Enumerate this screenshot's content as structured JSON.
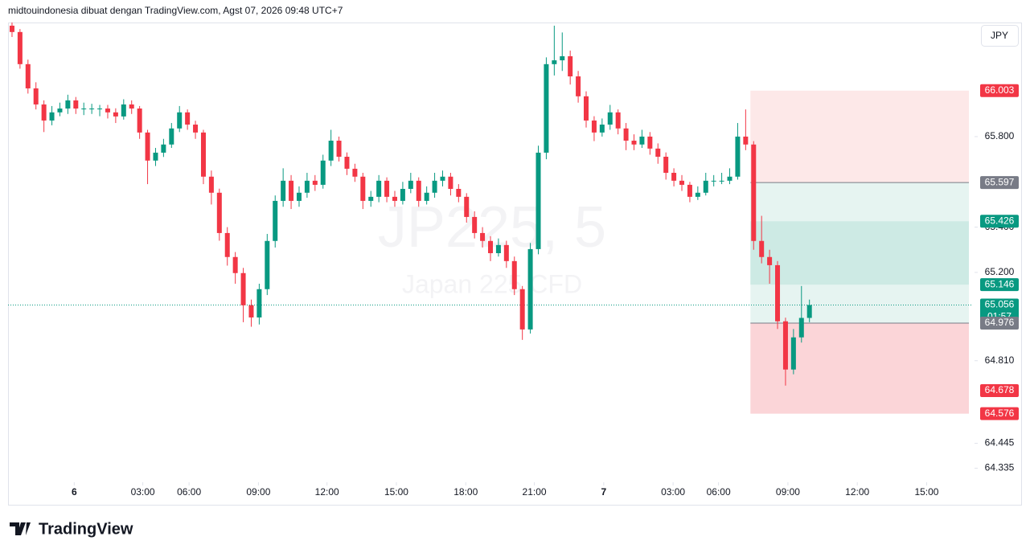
{
  "header": "midtouindonesia dibuat dengan TradingView.com, Agst 07, 2026 09:48 UTC+7",
  "currency": "JPY",
  "logo": "TradingView",
  "chart_data": {
    "type": "candlestick",
    "watermark": {
      "symbol": "JP225, 5",
      "description": "Japan 225 CFD"
    },
    "up_color": "#089981",
    "down_color": "#f23645",
    "xlim": [
      -0.5,
      120.5
    ],
    "ylim": [
      64.273,
      66.304
    ],
    "xticks": [
      {
        "value": 7.8,
        "label": "6"
      },
      {
        "value": 16.4,
        "label": "03:00"
      },
      {
        "value": 22.2,
        "label": "06:00"
      },
      {
        "value": 30.9,
        "label": "09:00"
      },
      {
        "value": 39.5,
        "label": "12:00"
      },
      {
        "value": 48.2,
        "label": "15:00"
      },
      {
        "value": 56.9,
        "label": "18:00"
      },
      {
        "value": 65.5,
        "label": "21:00"
      },
      {
        "value": 74.2,
        "label": "7"
      },
      {
        "value": 82.9,
        "label": "03:00"
      },
      {
        "value": 88.6,
        "label": "06:00"
      },
      {
        "value": 97.3,
        "label": "09:00"
      },
      {
        "value": 106.0,
        "label": "12:00"
      },
      {
        "value": 114.7,
        "label": "15:00"
      }
    ],
    "yticks": [
      {
        "value": 65.8,
        "label": "65.800"
      },
      {
        "value": 65.4,
        "label": "65.400"
      },
      {
        "value": 65.2,
        "label": "65.200"
      },
      {
        "value": 64.81,
        "label": "64.810"
      },
      {
        "value": 64.445,
        "label": "64.445"
      },
      {
        "value": 64.335,
        "label": "64.335"
      }
    ],
    "candles": [
      [
        66.29,
        66.304,
        66.24,
        66.262
      ],
      [
        66.262,
        66.275,
        66.1,
        66.12
      ],
      [
        66.12,
        66.14,
        65.99,
        66.013
      ],
      [
        66.013,
        66.04,
        65.92,
        65.942
      ],
      [
        65.942,
        65.96,
        65.82,
        65.871
      ],
      [
        65.871,
        65.935,
        65.85,
        65.907
      ],
      [
        65.907,
        65.95,
        65.89,
        65.924
      ],
      [
        65.924,
        65.985,
        65.9,
        65.96
      ],
      [
        65.96,
        65.975,
        65.9,
        65.924
      ],
      [
        65.924,
        65.95,
        65.895,
        65.924
      ],
      [
        65.924,
        65.945,
        65.9,
        65.924
      ],
      [
        65.924,
        65.94,
        65.89,
        65.924
      ],
      [
        65.924,
        65.94,
        65.88,
        65.907
      ],
      [
        65.907,
        65.925,
        65.86,
        65.889
      ],
      [
        65.889,
        65.965,
        65.875,
        65.942
      ],
      [
        65.942,
        65.96,
        65.9,
        65.924
      ],
      [
        65.924,
        65.935,
        65.79,
        65.818
      ],
      [
        65.818,
        65.83,
        65.59,
        65.694
      ],
      [
        65.694,
        65.75,
        65.67,
        65.729
      ],
      [
        65.729,
        65.79,
        65.71,
        65.765
      ],
      [
        65.765,
        65.86,
        65.75,
        65.836
      ],
      [
        65.836,
        65.935,
        65.82,
        65.907
      ],
      [
        65.907,
        65.92,
        65.83,
        65.853
      ],
      [
        65.853,
        65.87,
        65.79,
        65.818
      ],
      [
        65.818,
        65.83,
        65.59,
        65.623
      ],
      [
        65.623,
        65.65,
        65.5,
        65.552
      ],
      [
        65.552,
        65.57,
        65.34,
        65.374
      ],
      [
        65.374,
        65.4,
        65.23,
        65.268
      ],
      [
        65.268,
        65.29,
        65.15,
        65.197
      ],
      [
        65.197,
        65.22,
        64.98,
        65.055
      ],
      [
        65.055,
        65.08,
        64.96,
        65.001
      ],
      [
        65.001,
        65.15,
        64.97,
        65.126
      ],
      [
        65.126,
        65.37,
        65.1,
        65.339
      ],
      [
        65.339,
        65.54,
        65.31,
        65.516
      ],
      [
        65.516,
        65.66,
        65.49,
        65.605
      ],
      [
        65.605,
        65.63,
        65.48,
        65.516
      ],
      [
        65.516,
        65.58,
        65.49,
        65.552
      ],
      [
        65.552,
        65.64,
        65.53,
        65.605
      ],
      [
        65.605,
        65.63,
        65.56,
        65.587
      ],
      [
        65.587,
        65.72,
        65.57,
        65.694
      ],
      [
        65.694,
        65.83,
        65.67,
        65.782
      ],
      [
        65.782,
        65.8,
        65.69,
        65.711
      ],
      [
        65.711,
        65.73,
        65.63,
        65.658
      ],
      [
        65.658,
        65.68,
        65.6,
        65.623
      ],
      [
        65.623,
        65.64,
        65.48,
        65.516
      ],
      [
        65.516,
        65.56,
        65.49,
        65.534
      ],
      [
        65.534,
        65.63,
        65.51,
        65.605
      ],
      [
        65.605,
        65.62,
        65.51,
        65.534
      ],
      [
        65.534,
        65.56,
        65.49,
        65.516
      ],
      [
        65.516,
        65.6,
        65.5,
        65.569
      ],
      [
        65.569,
        65.64,
        65.55,
        65.605
      ],
      [
        65.605,
        65.62,
        65.49,
        65.516
      ],
      [
        65.516,
        65.58,
        65.5,
        65.552
      ],
      [
        65.552,
        65.64,
        65.53,
        65.605
      ],
      [
        65.605,
        65.65,
        65.58,
        65.623
      ],
      [
        65.623,
        65.64,
        65.54,
        65.569
      ],
      [
        65.569,
        65.59,
        65.51,
        65.534
      ],
      [
        65.534,
        65.55,
        65.42,
        65.445
      ],
      [
        65.445,
        65.47,
        65.35,
        65.374
      ],
      [
        65.374,
        65.4,
        65.31,
        65.339
      ],
      [
        65.339,
        65.36,
        65.25,
        65.285
      ],
      [
        65.285,
        65.35,
        65.27,
        65.321
      ],
      [
        65.321,
        65.34,
        65.22,
        65.25
      ],
      [
        65.25,
        65.27,
        65.1,
        65.126
      ],
      [
        65.126,
        65.14,
        64.902,
        64.948
      ],
      [
        64.948,
        65.33,
        64.93,
        65.303
      ],
      [
        65.303,
        65.76,
        65.28,
        65.729
      ],
      [
        65.729,
        66.15,
        65.7,
        66.12
      ],
      [
        66.12,
        66.29,
        66.07,
        66.137
      ],
      [
        66.137,
        66.26,
        66.09,
        66.155
      ],
      [
        66.155,
        66.18,
        66.03,
        66.066
      ],
      [
        66.066,
        66.09,
        65.95,
        65.978
      ],
      [
        65.978,
        66.0,
        65.84,
        65.871
      ],
      [
        65.871,
        65.89,
        65.78,
        65.818
      ],
      [
        65.818,
        65.88,
        65.8,
        65.853
      ],
      [
        65.853,
        65.94,
        65.83,
        65.907
      ],
      [
        65.907,
        65.92,
        65.81,
        65.836
      ],
      [
        65.836,
        65.86,
        65.74,
        65.782
      ],
      [
        65.782,
        65.81,
        65.74,
        65.765
      ],
      [
        65.765,
        65.83,
        65.75,
        65.8
      ],
      [
        65.8,
        65.82,
        65.72,
        65.747
      ],
      [
        65.747,
        65.77,
        65.68,
        65.711
      ],
      [
        65.711,
        65.73,
        65.61,
        65.64
      ],
      [
        65.64,
        65.66,
        65.58,
        65.605
      ],
      [
        65.605,
        65.63,
        65.56,
        65.587
      ],
      [
        65.587,
        65.6,
        65.51,
        65.534
      ],
      [
        65.534,
        65.58,
        65.52,
        65.552
      ],
      [
        65.552,
        65.64,
        65.54,
        65.605
      ],
      [
        65.605,
        65.63,
        65.58,
        65.605
      ],
      [
        65.605,
        65.64,
        65.59,
        65.605
      ],
      [
        65.605,
        65.66,
        65.59,
        65.623
      ],
      [
        65.623,
        65.86,
        65.61,
        65.8
      ],
      [
        65.8,
        65.92,
        65.74,
        65.765
      ],
      [
        65.765,
        65.78,
        65.3,
        65.339
      ],
      [
        65.339,
        65.45,
        65.24,
        65.268
      ],
      [
        65.268,
        65.3,
        65.15,
        65.232
      ],
      [
        65.232,
        65.25,
        64.95,
        64.984
      ],
      [
        64.984,
        65.0,
        64.7,
        64.771
      ],
      [
        64.771,
        64.95,
        64.75,
        64.913
      ],
      [
        64.913,
        65.14,
        64.89,
        64.999
      ],
      [
        64.999,
        65.08,
        64.98,
        65.056
      ]
    ],
    "zones": [
      {
        "x": [
          92.6,
          120
        ],
        "y": [
          66.003,
          65.597
        ],
        "color": "#fde8e8"
      },
      {
        "x": [
          92.6,
          120
        ],
        "y": [
          65.597,
          64.976
        ],
        "color": "#e6f4f1"
      },
      {
        "x": [
          92.6,
          120
        ],
        "y": [
          65.426,
          65.146
        ],
        "color": "#cdeae4"
      },
      {
        "x": [
          92.6,
          120
        ],
        "y": [
          64.976,
          64.576
        ],
        "color": "#fbd5d8"
      }
    ],
    "levels": [
      {
        "value": 65.597,
        "color": "#787b86"
      },
      {
        "value": 64.976,
        "color": "#787b86"
      }
    ],
    "price_labels": [
      {
        "value": 66.003,
        "label": "66.003",
        "color": "#f23645"
      },
      {
        "value": 65.597,
        "label": "65.597",
        "color": "#787b86"
      },
      {
        "value": 65.426,
        "label": "65.426",
        "color": "#089981"
      },
      {
        "value": 65.146,
        "label": "65.146",
        "color": "#089981"
      },
      {
        "value": 65.056,
        "label": "65.056",
        "sub": "01:57",
        "color": "#089981",
        "line": "dotted"
      },
      {
        "value": 64.976,
        "label": "64.976",
        "color": "#787b86"
      },
      {
        "value": 64.678,
        "label": "64.678",
        "color": "#f23645"
      },
      {
        "value": 64.576,
        "label": "64.576",
        "color": "#f23645"
      }
    ]
  }
}
